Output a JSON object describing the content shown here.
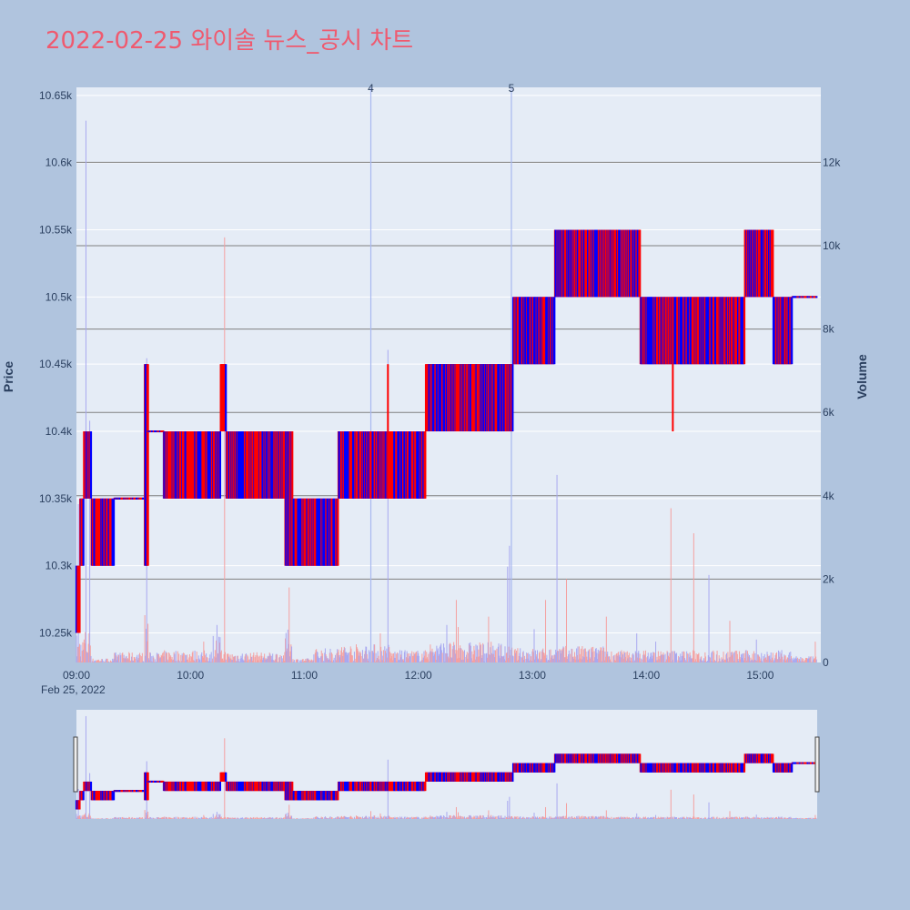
{
  "title": "2022-02-25 와이솔 뉴스_공시 차트",
  "colors": {
    "background": "#b0c4de",
    "plot_bg": "#e5ecf6",
    "title": "#ef5a6f",
    "up": "#ff0000",
    "down": "#0000ff",
    "volume_up": "#f4a0a0",
    "volume_down": "#a8a8f0",
    "news_line": "#a8b8f0",
    "volume_grid": "#808080"
  },
  "chart_data": {
    "type": "candlestick",
    "title": "2022-02-25 와이솔 뉴스_공시 차트",
    "price_axis": {
      "label": "Price",
      "range": [
        10228,
        10656
      ],
      "ticks": [
        10250,
        10300,
        10350,
        10400,
        10450,
        10500,
        10550,
        10600,
        10650
      ],
      "tick_labels": [
        "10.25k",
        "10.3k",
        "10.35k",
        "10.4k",
        "10.45k",
        "10.5k",
        "10.55k",
        "10.6k",
        "10.65k"
      ]
    },
    "volume_axis": {
      "label": "Volume",
      "range": [
        0,
        13800
      ],
      "ticks": [
        0,
        2000,
        4000,
        6000,
        8000,
        10000,
        12000
      ],
      "tick_labels": [
        "0",
        "2k",
        "4k",
        "6k",
        "8k",
        "10k",
        "12k"
      ]
    },
    "time_axis": {
      "range": [
        "09:00",
        "15:30"
      ],
      "ticks": [
        "09:00",
        "10:00",
        "11:00",
        "12:00",
        "13:00",
        "14:00",
        "15:00"
      ],
      "date_label": "Feb 25, 2022"
    },
    "news_markers": [
      {
        "label": "4",
        "time": "11:35"
      },
      {
        "label": "5",
        "time": "12:49"
      }
    ],
    "segments": [
      {
        "t0": "09:00",
        "t1": "09:02",
        "lo": 10250,
        "hi": 10300,
        "hiV": 700,
        "peaks": [
          [
            "09:01",
            3800
          ]
        ]
      },
      {
        "t0": "09:02",
        "t1": "09:04",
        "lo": 10300,
        "hi": 10350,
        "hiV": 600
      },
      {
        "t0": "09:04",
        "t1": "09:08",
        "lo": 10350,
        "hi": 10400,
        "hiV": 800,
        "peaks": [
          [
            "09:05",
            13000
          ],
          [
            "09:07",
            5800
          ]
        ]
      },
      {
        "t0": "09:08",
        "t1": "09:20",
        "lo": 10300,
        "hi": 10350,
        "hiV": 100
      },
      {
        "t0": "09:20",
        "t1": "09:36",
        "lo": 10350,
        "hi": 10350,
        "hiV": 250
      },
      {
        "t0": "09:36",
        "t1": "09:38",
        "lo": 10300,
        "hi": 10450,
        "hiV": 1200,
        "peaks": [
          [
            "09:37",
            7300
          ],
          [
            "09:39",
            1800
          ]
        ]
      },
      {
        "t0": "09:38",
        "t1": "09:46",
        "lo": 10400,
        "hi": 10400,
        "hiV": 250
      },
      {
        "t0": "09:46",
        "t1": "10:12",
        "lo": 10350,
        "hi": 10400,
        "hiV": 300,
        "peaks": [
          [
            "10:07",
            500
          ],
          [
            "10:13",
            3900
          ]
        ]
      },
      {
        "t0": "10:12",
        "t1": "10:16",
        "lo": 10350,
        "hi": 10400,
        "hiV": 700,
        "peaks": [
          [
            "10:14",
            900
          ]
        ]
      },
      {
        "t0": "10:16",
        "t1": "10:19",
        "lo": 10400,
        "hi": 10450,
        "hiV": 300,
        "peaks": [
          [
            "10:18",
            10200
          ]
        ]
      },
      {
        "t0": "10:19",
        "t1": "10:50",
        "lo": 10350,
        "hi": 10400,
        "hiV": 250
      },
      {
        "t0": "10:50",
        "t1": "10:54",
        "lo": 10300,
        "hi": 10400,
        "hiV": 800,
        "peaks": [
          [
            "10:52",
            1800
          ]
        ]
      },
      {
        "t0": "10:54",
        "t1": "11:05",
        "lo": 10300,
        "hi": 10350,
        "hiV": 100
      },
      {
        "t0": "11:05",
        "t1": "11:18",
        "lo": 10300,
        "hi": 10350,
        "hiV": 350
      },
      {
        "t0": "11:18",
        "t1": "11:45",
        "lo": 10350,
        "hi": 10400,
        "hiV": 450,
        "peaks": [
          [
            "11:35",
            1000
          ],
          [
            "11:40",
            700
          ],
          [
            "11:44",
            7500
          ]
        ]
      },
      {
        "t0": "11:45",
        "t1": "12:04",
        "lo": 10350,
        "hi": 10400,
        "hiV": 300,
        "peaks": [
          [
            "12:05",
            1200
          ]
        ]
      },
      {
        "t0": "12:04",
        "t1": "12:45",
        "lo": 10400,
        "hi": 10450,
        "hiV": 500,
        "peaks": [
          [
            "12:20",
            1500
          ],
          [
            "12:21",
            850
          ],
          [
            "12:15",
            900
          ],
          [
            "12:37",
            1100
          ]
        ]
      },
      {
        "t0": "12:45",
        "t1": "12:50",
        "lo": 10400,
        "hi": 10450,
        "hiV": 400,
        "peaks": [
          [
            "12:47",
            2300
          ],
          [
            "12:48",
            2800
          ]
        ]
      },
      {
        "t0": "12:50",
        "t1": "13:12",
        "lo": 10450,
        "hi": 10500,
        "hiV": 350,
        "peaks": [
          [
            "13:01",
            800
          ],
          [
            "13:07",
            1500
          ]
        ]
      },
      {
        "t0": "13:12",
        "t1": "13:40",
        "lo": 10500,
        "hi": 10550,
        "hiV": 400,
        "peaks": [
          [
            "13:13",
            4500
          ],
          [
            "13:18",
            2000
          ],
          [
            "13:39",
            1100
          ]
        ]
      },
      {
        "t0": "13:40",
        "t1": "13:57",
        "lo": 10500,
        "hi": 10550,
        "hiV": 300,
        "peaks": [
          [
            "13:55",
            700
          ]
        ]
      },
      {
        "t0": "13:57",
        "t1": "14:08",
        "lo": 10450,
        "hi": 10500,
        "hiV": 300,
        "peaks": [
          [
            "14:05",
            500
          ]
        ]
      },
      {
        "t0": "14:08",
        "t1": "14:26",
        "lo": 10450,
        "hi": 10500,
        "hiV": 300,
        "peaks": [
          [
            "14:13",
            3700
          ],
          [
            "14:25",
            3100
          ]
        ]
      },
      {
        "t0": "14:26",
        "t1": "14:52",
        "lo": 10450,
        "hi": 10500,
        "hiV": 300,
        "peaks": [
          [
            "14:33",
            2100
          ],
          [
            "14:44",
            1000
          ]
        ]
      },
      {
        "t0": "14:52",
        "t1": "15:07",
        "lo": 10500,
        "hi": 10550,
        "hiV": 300,
        "peaks": [
          [
            "14:58",
            550
          ]
        ]
      },
      {
        "t0": "15:07",
        "t1": "15:17",
        "lo": 10450,
        "hi": 10500,
        "hiV": 300
      },
      {
        "t0": "15:17",
        "t1": "15:30",
        "lo": 10500,
        "hi": 10500,
        "hiV": 150,
        "peaks": [
          [
            "15:29",
            500
          ]
        ]
      }
    ]
  }
}
